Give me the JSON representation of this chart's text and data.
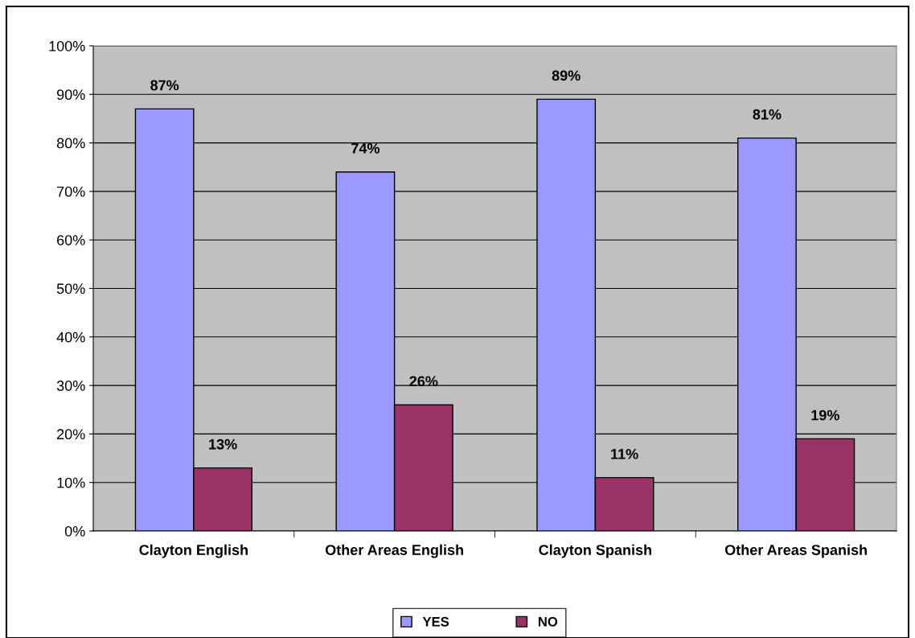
{
  "chart_data": {
    "type": "bar",
    "categories": [
      "Clayton English",
      "Other Areas English",
      "Clayton Spanish",
      "Other Areas Spanish"
    ],
    "series": [
      {
        "name": "YES",
        "color": "#9999ff",
        "values": [
          87,
          74,
          89,
          81
        ]
      },
      {
        "name": "NO",
        "color": "#993366",
        "values": [
          13,
          26,
          11,
          19
        ]
      }
    ],
    "value_labels": [
      [
        "87%",
        "74%",
        "89%",
        "81%"
      ],
      [
        "13%",
        "26%",
        "11%",
        "19%"
      ]
    ],
    "ylim": [
      0,
      100
    ],
    "yticks": [
      {
        "value": 0,
        "label": "0%"
      },
      {
        "value": 10,
        "label": "10%"
      },
      {
        "value": 20,
        "label": "20%"
      },
      {
        "value": 30,
        "label": "30%"
      },
      {
        "value": 40,
        "label": "40%"
      },
      {
        "value": 50,
        "label": "50%"
      },
      {
        "value": 60,
        "label": "60%"
      },
      {
        "value": 70,
        "label": "70%"
      },
      {
        "value": 80,
        "label": "80%"
      },
      {
        "value": 90,
        "label": "90%"
      },
      {
        "value": 100,
        "label": "100%"
      }
    ],
    "grid": "y",
    "legend": "bottom"
  }
}
